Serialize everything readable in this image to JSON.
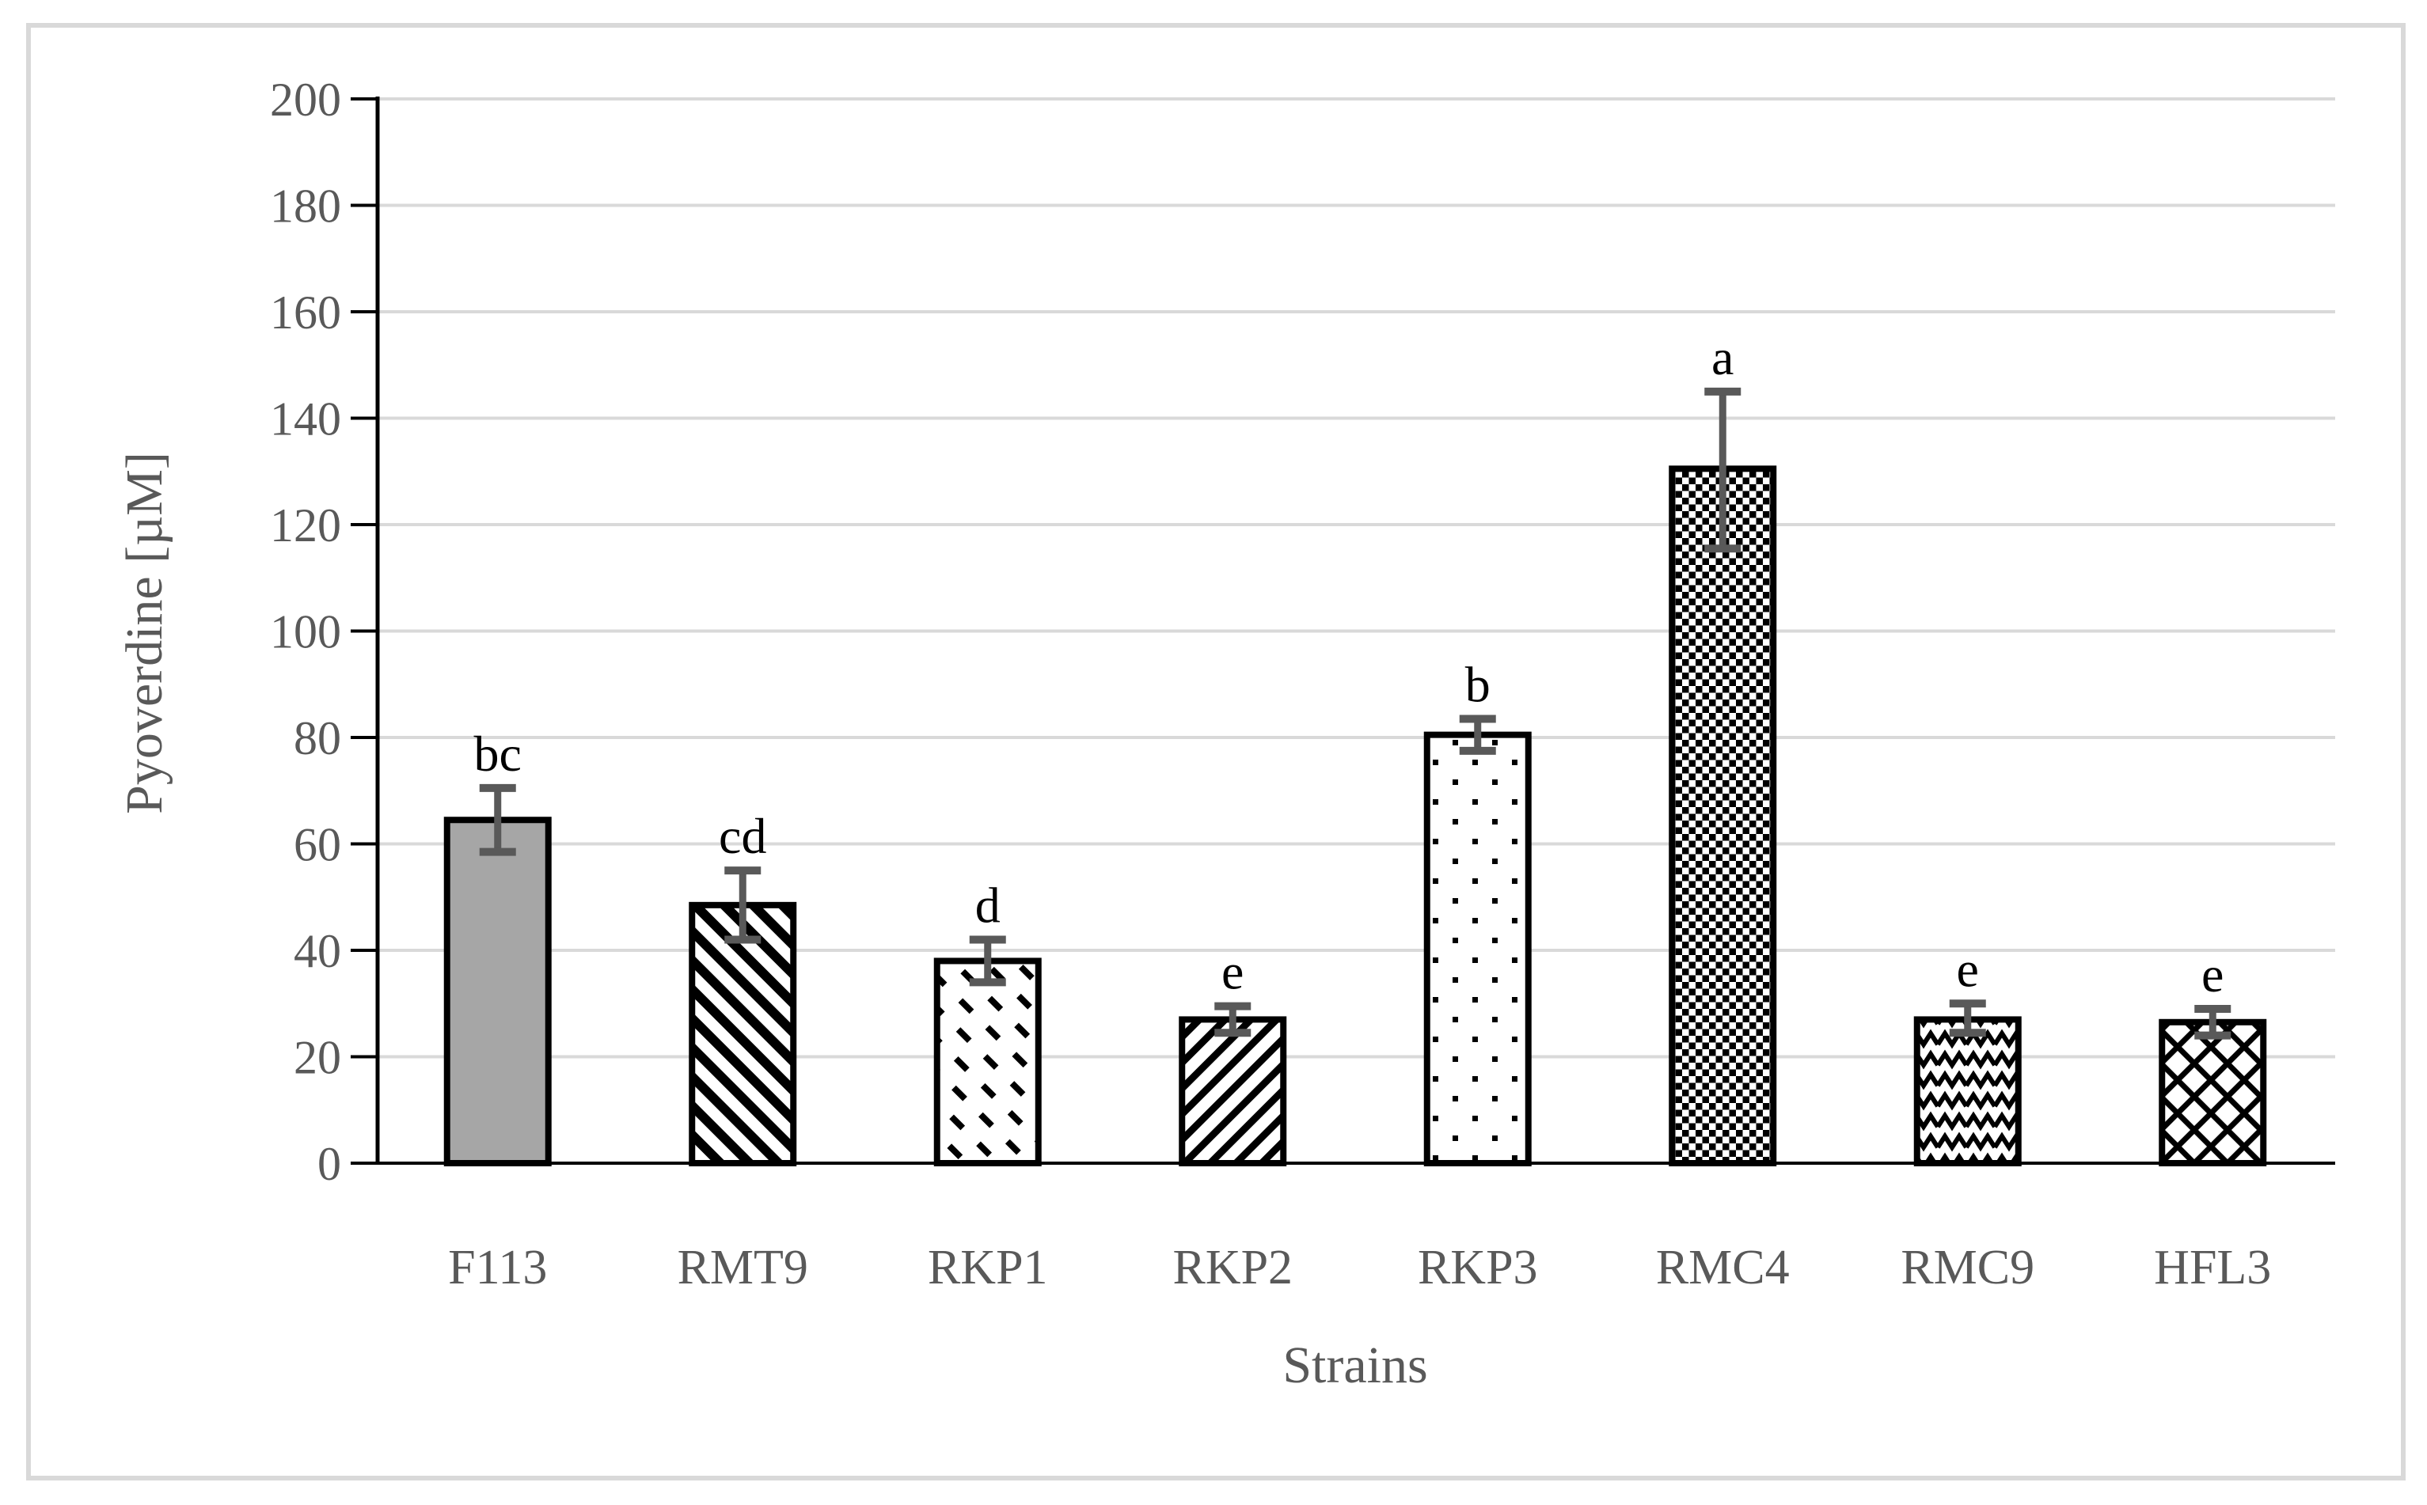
{
  "figure": {
    "background": "#ffffff",
    "frame_color": "#d9d9d9"
  },
  "chart_data": {
    "type": "bar",
    "title": "",
    "xlabel": "Strains",
    "ylabel": "Pyoverdine [µM]",
    "ylim": [
      0,
      200
    ],
    "ytick_step": 20,
    "ytick_labels": [
      "0",
      "20",
      "40",
      "60",
      "80",
      "100",
      "120",
      "140",
      "160",
      "180",
      "200"
    ],
    "grid": true,
    "legend_position": "none",
    "categories": [
      "F113",
      "RMT9",
      "RKP1",
      "RKP2",
      "RKP3",
      "RMC4",
      "RMC9",
      "HFL3"
    ],
    "series": [
      {
        "name": "Pyoverdine",
        "values": [
          64.5,
          48.5,
          38,
          27,
          80.5,
          130.5,
          27,
          26.5
        ],
        "error_low": [
          58.5,
          42,
          34,
          24.5,
          77.5,
          115.5,
          24.5,
          24
        ],
        "error_high": [
          70.5,
          55,
          42,
          29.5,
          83.5,
          145,
          30,
          29
        ]
      }
    ],
    "significance_letters": [
      "bc",
      "cd",
      "d",
      "e",
      "b",
      "a",
      "e",
      "e"
    ],
    "bar_fill_patterns": [
      "solid-gray",
      "diagonal-stripes-down",
      "diagonal-dashes-down",
      "diagonal-stripes-up",
      "sparse-dots",
      "checkerboard",
      "zigzag-waves",
      "diamond-crosshatch"
    ],
    "colors": {
      "bar_solid_fill": "#a6a6a6",
      "bar_border": "#000000",
      "pattern_foreground": "#000000",
      "pattern_background": "#ffffff",
      "error_bar": "#595959",
      "axis_line": "#000000",
      "gridline": "#d9d9d9",
      "tick_label": "#595959",
      "axis_title": "#595959",
      "sig_letter": "#000000"
    }
  }
}
